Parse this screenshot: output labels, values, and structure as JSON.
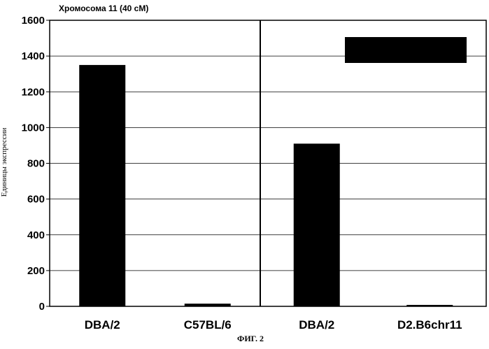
{
  "chart_data": {
    "type": "bar",
    "title": "Хромосома 11 (40 cM)",
    "ylabel": "Единицы экспрессии",
    "xlabel": "",
    "caption": "ФИГ. 2",
    "ylim": [
      0,
      1600
    ],
    "yticks": [
      "0",
      "200",
      "400",
      "600",
      "800",
      "1000",
      "1200",
      "1400",
      "1600"
    ],
    "grid": true,
    "panels": [
      {
        "categories": [
          "DBA/2",
          "C57BL/6"
        ],
        "values": [
          1350,
          15
        ]
      },
      {
        "categories": [
          "DBA/2",
          "D2.B6chr11"
        ],
        "values": [
          910,
          8
        ]
      }
    ],
    "legend_box": {
      "placement": "top-right",
      "color": "#000000",
      "label": ""
    },
    "bar_color": "#000000"
  }
}
